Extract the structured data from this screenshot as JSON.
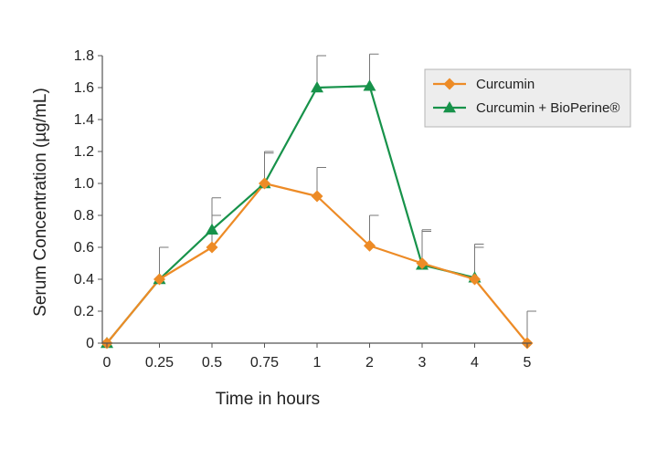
{
  "chart_data": {
    "type": "line",
    "title": "",
    "xlabel": "Time in hours",
    "ylabel": "Serum Concentration (µg/mL)",
    "categories": [
      "0",
      "0.25",
      "0.5",
      "0.75",
      "1",
      "2",
      "3",
      "4",
      "5"
    ],
    "yticks": [
      "0",
      "0.2",
      "0.4",
      "0.6",
      "0.8",
      "1.0",
      "1.2",
      "1.4",
      "1.6",
      "1.8"
    ],
    "ylim": [
      0,
      1.8
    ],
    "grid": false,
    "legend_position": "top-right",
    "series": [
      {
        "name": "Curcumin",
        "color": "#ED8B26",
        "marker": "diamond",
        "values": [
          0,
          0.4,
          0.6,
          1.0,
          0.92,
          0.61,
          0.5,
          0.4,
          0
        ],
        "error_upper": [
          null,
          0.6,
          0.8,
          1.2,
          1.1,
          0.8,
          0.71,
          0.62,
          0.2
        ]
      },
      {
        "name": "Curcumin + BioPerine®",
        "color": "#17924A",
        "marker": "triangle",
        "values": [
          0,
          0.4,
          0.71,
          1.0,
          1.6,
          1.61,
          0.49,
          0.41,
          null
        ],
        "error_upper": [
          null,
          null,
          0.91,
          1.19,
          1.8,
          1.81,
          0.7,
          0.6,
          null
        ]
      }
    ]
  }
}
